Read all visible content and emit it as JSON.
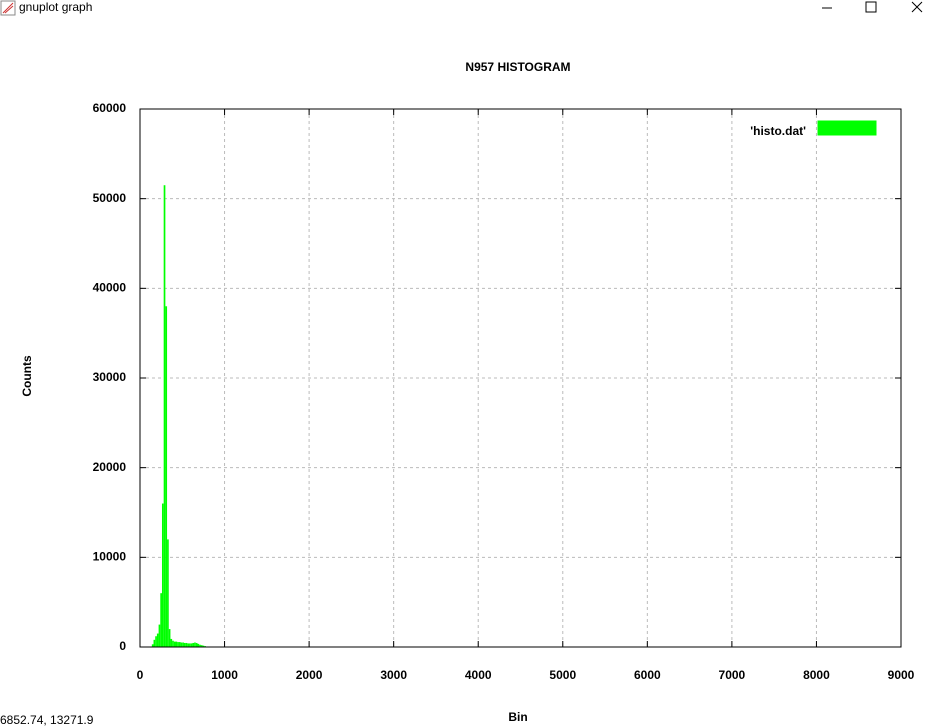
{
  "window": {
    "title": "gnuplot graph"
  },
  "status_text": "6852.74, 13271.9",
  "chart_data": {
    "type": "histogram",
    "title": "N957 HISTOGRAM",
    "x_label": "Bin",
    "y_label": "Counts",
    "bins": [
      140,
      160,
      180,
      200,
      220,
      240,
      260,
      280,
      300,
      320,
      340,
      360,
      380,
      400,
      420,
      440,
      460,
      480,
      500,
      520,
      540,
      560,
      580,
      600,
      620,
      640,
      660,
      680,
      700,
      720,
      740,
      760,
      780,
      800
    ],
    "series": [
      {
        "name": "'histo.dat'",
        "color": "#00ff00",
        "values": [
          300,
          800,
          1200,
          1500,
          2500,
          6000,
          16000,
          51500,
          38000,
          12000,
          2000,
          900,
          700,
          600,
          600,
          550,
          550,
          500,
          500,
          450,
          450,
          400,
          400,
          400,
          450,
          500,
          450,
          350,
          250,
          200,
          150,
          100,
          50
        ]
      }
    ],
    "xlim": [
      0,
      9000
    ],
    "xticks": [
      0,
      1000,
      2000,
      3000,
      4000,
      5000,
      6000,
      7000,
      8000,
      9000
    ],
    "ylim": [
      0,
      60000
    ],
    "yticks": [
      0,
      10000,
      20000,
      30000,
      40000,
      50000,
      60000
    ],
    "grid": true,
    "legend": "top-right"
  }
}
